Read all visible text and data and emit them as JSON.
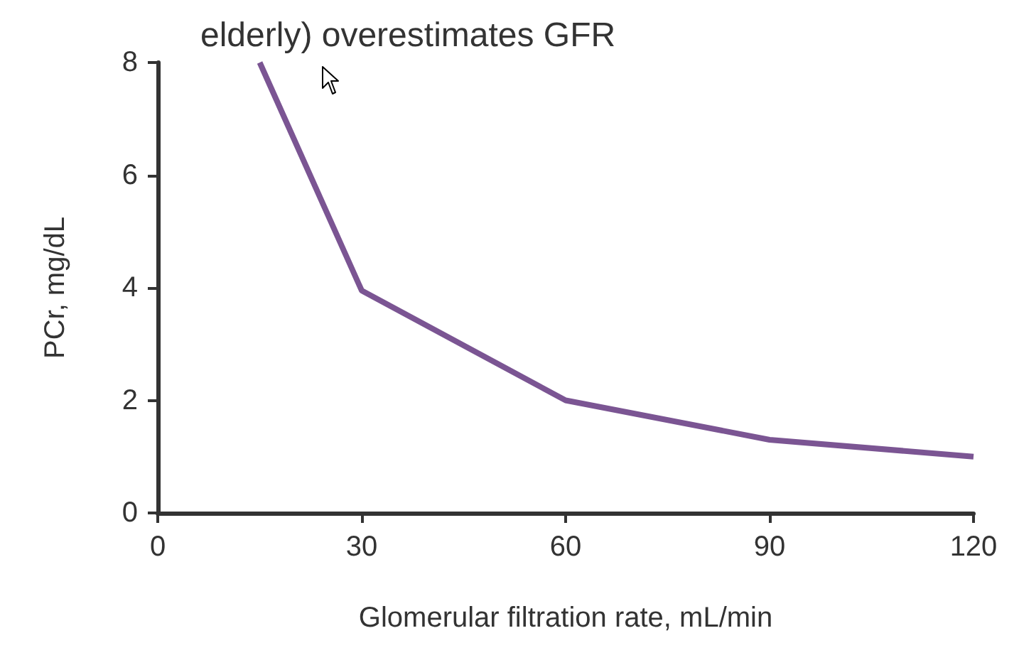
{
  "chart_data": {
    "type": "line",
    "title": "elderly) overestimates GFR",
    "xlabel": "Glomerular filtration rate, mL/min",
    "ylabel": "PCr, mg/dL",
    "x": [
      15,
      30,
      60,
      90,
      120
    ],
    "series": [
      {
        "color": "#7b5593",
        "values": [
          8,
          3.95,
          2,
          1.3,
          1
        ]
      }
    ],
    "xlim": [
      0,
      120
    ],
    "xticks": [
      0,
      30,
      60,
      90,
      120
    ],
    "ylim": [
      0,
      8
    ],
    "yticks": [
      0,
      2,
      4,
      6,
      8
    ],
    "grid": false,
    "marker": "none",
    "line_style": "solid"
  }
}
